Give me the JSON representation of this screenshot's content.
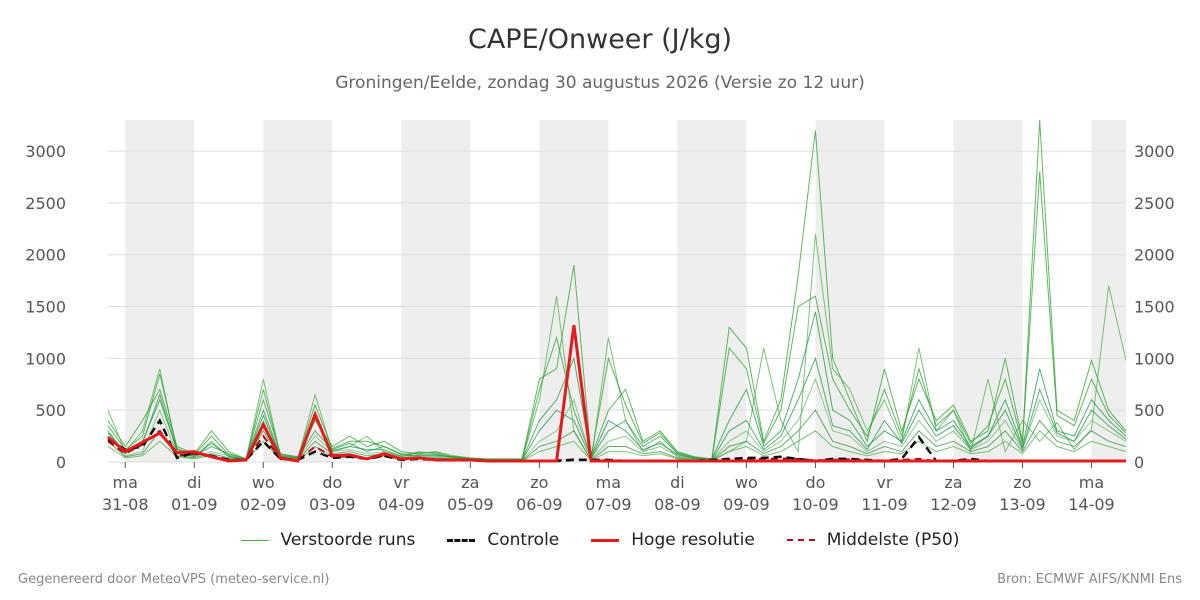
{
  "colors": {
    "accent": "#e41a1c",
    "shade": "#eeeeee",
    "grid": "#dddddd",
    "members": [
      "#4daf4a",
      "#2ca02c",
      "#1a9641",
      "#66bb6a",
      "#388e3c"
    ],
    "control": "#111111",
    "median": "#a50f15"
  },
  "footer": {
    "left": "Gegenereerd door MeteoVPS (meteo-service.nl)",
    "right": "Bron: ECMWF AIFS/KNMI Ens"
  },
  "legend": [
    {
      "label": "Verstoorde runs",
      "style": "thin-green-icon"
    },
    {
      "label": "Controle",
      "style": "black-dashed-icon"
    },
    {
      "label": "Hoge resolutie",
      "style": "red-thick-icon"
    },
    {
      "label": "Middelste (P50)",
      "style": "darkred-dashed-icon"
    }
  ],
  "chart_data": {
    "type": "line",
    "title": "CAPE/Onweer (J/kg)",
    "subtitle": "Groningen/Eelde, zondag 30 augustus 2026 (Versie zo 12 uur)",
    "xlabel": "",
    "ylabel": "",
    "xlim_days": [
      -0.25,
      14.5
    ],
    "ylim": [
      0,
      3300
    ],
    "yticks": [
      0,
      500,
      1000,
      1500,
      2000,
      2500,
      3000
    ],
    "grid": true,
    "legend_position": "bottom",
    "x_ticks": [
      {
        "day": "ma",
        "date": "31-08"
      },
      {
        "day": "di",
        "date": "01-09"
      },
      {
        "day": "wo",
        "date": "02-09"
      },
      {
        "day": "do",
        "date": "03-09"
      },
      {
        "day": "vr",
        "date": "04-09"
      },
      {
        "day": "za",
        "date": "05-09"
      },
      {
        "day": "zo",
        "date": "06-09"
      },
      {
        "day": "ma",
        "date": "07-09"
      },
      {
        "day": "di",
        "date": "08-09"
      },
      {
        "day": "wo",
        "date": "09-09"
      },
      {
        "day": "do",
        "date": "10-09"
      },
      {
        "day": "vr",
        "date": "11-09"
      },
      {
        "day": "za",
        "date": "12-09"
      },
      {
        "day": "zo",
        "date": "13-09"
      },
      {
        "day": "ma",
        "date": "14-09"
      }
    ],
    "x": [
      -0.25,
      0,
      0.25,
      0.5,
      0.75,
      1,
      1.25,
      1.5,
      1.75,
      2,
      2.25,
      2.5,
      2.75,
      3,
      3.25,
      3.5,
      3.75,
      4,
      4.25,
      4.5,
      4.75,
      5,
      5.25,
      5.5,
      5.75,
      6,
      6.25,
      6.5,
      6.75,
      7,
      7.25,
      7.5,
      7.75,
      8,
      8.25,
      8.5,
      8.75,
      9,
      9.25,
      9.5,
      9.75,
      10,
      10.25,
      10.5,
      10.75,
      11,
      11.25,
      11.5,
      11.75,
      12,
      12.25,
      12.5,
      12.75,
      13,
      13.25,
      13.5,
      13.75,
      14,
      14.25,
      14.5
    ],
    "series": [
      {
        "name": "Hoge resolutie",
        "values": [
          240,
          100,
          190,
          280,
          90,
          100,
          50,
          10,
          20,
          360,
          40,
          10,
          460,
          60,
          70,
          30,
          80,
          30,
          40,
          20,
          20,
          20,
          10,
          10,
          10,
          10,
          10,
          1320,
          10,
          10,
          10,
          10,
          10,
          10,
          10,
          10,
          10,
          10,
          10,
          10,
          10,
          10,
          10,
          10,
          10,
          10,
          10,
          10,
          10,
          10,
          10,
          10,
          10,
          10,
          10,
          10,
          10,
          10,
          10,
          10
        ]
      },
      {
        "name": "Controle",
        "values": [
          220,
          120,
          150,
          400,
          40,
          90,
          60,
          20,
          20,
          200,
          30,
          20,
          100,
          40,
          50,
          30,
          60,
          20,
          30,
          20,
          20,
          20,
          10,
          10,
          10,
          10,
          10,
          20,
          20,
          20,
          10,
          10,
          10,
          10,
          10,
          20,
          30,
          40,
          40,
          50,
          30,
          10,
          30,
          30,
          20,
          10,
          30,
          240,
          10,
          10,
          30,
          10,
          10,
          10,
          10,
          10,
          10,
          10,
          10,
          10
        ]
      },
      {
        "name": "Middelste (P50)",
        "values": [
          200,
          80,
          170,
          300,
          60,
          80,
          50,
          15,
          20,
          250,
          30,
          15,
          150,
          50,
          55,
          30,
          60,
          25,
          30,
          20,
          15,
          15,
          10,
          10,
          10,
          10,
          15,
          25,
          20,
          15,
          10,
          10,
          10,
          10,
          15,
          20,
          25,
          30,
          30,
          35,
          30,
          15,
          20,
          25,
          15,
          10,
          20,
          30,
          10,
          10,
          20,
          10,
          10,
          10,
          10,
          10,
          10,
          10,
          10,
          10
        ]
      },
      {
        "values": [
          500,
          100,
          300,
          900,
          100,
          50,
          200,
          50,
          20,
          800,
          50,
          30,
          650,
          100,
          150,
          250,
          100,
          50,
          100,
          80,
          40,
          30,
          20,
          20,
          20,
          600,
          1600,
          300,
          10,
          1200,
          400,
          100,
          200,
          50,
          30,
          20,
          100,
          200,
          1100,
          400,
          100,
          2200,
          900,
          700,
          300,
          600,
          200,
          1100,
          300,
          500,
          100,
          800,
          100,
          400,
          200,
          380,
          120,
          320,
          1700,
          980
        ]
      },
      {
        "values": [
          400,
          150,
          400,
          700,
          150,
          80,
          300,
          100,
          30,
          600,
          80,
          50,
          400,
          150,
          250,
          150,
          200,
          100,
          80,
          100,
          60,
          40,
          30,
          30,
          30,
          800,
          900,
          1900,
          50,
          500,
          700,
          200,
          300,
          100,
          50,
          30,
          1300,
          1100,
          200,
          600,
          1800,
          3200,
          1000,
          600,
          200,
          900,
          300,
          800,
          400,
          550,
          200,
          300,
          1000,
          200,
          3300,
          500,
          400,
          980,
          500,
          300
        ]
      },
      {
        "values": [
          300,
          80,
          200,
          600,
          120,
          60,
          150,
          80,
          30,
          500,
          60,
          40,
          300,
          120,
          180,
          100,
          150,
          80,
          60,
          60,
          50,
          30,
          20,
          20,
          20,
          400,
          600,
          1000,
          40,
          300,
          400,
          150,
          250,
          80,
          40,
          30,
          400,
          700,
          150,
          300,
          800,
          1450,
          500,
          400,
          150,
          300,
          200,
          600,
          300,
          400,
          150,
          250,
          600,
          150,
          900,
          300,
          250,
          600,
          400,
          250
        ]
      },
      {
        "values": [
          250,
          60,
          100,
          500,
          80,
          50,
          100,
          60,
          20,
          400,
          40,
          30,
          250,
          100,
          120,
          80,
          100,
          60,
          50,
          50,
          40,
          25,
          15,
          15,
          15,
          200,
          300,
          600,
          30,
          200,
          250,
          100,
          150,
          60,
          30,
          20,
          200,
          300,
          100,
          200,
          400,
          800,
          300,
          250,
          100,
          200,
          150,
          400,
          200,
          300,
          120,
          200,
          400,
          120,
          600,
          250,
          200,
          400,
          300,
          200
        ]
      },
      {
        "values": [
          200,
          50,
          80,
          300,
          60,
          40,
          80,
          40,
          15,
          300,
          30,
          20,
          200,
          80,
          100,
          60,
          80,
          40,
          40,
          40,
          30,
          20,
          10,
          10,
          10,
          150,
          200,
          300,
          20,
          150,
          150,
          80,
          100,
          40,
          20,
          15,
          150,
          200,
          80,
          150,
          300,
          500,
          200,
          150,
          80,
          150,
          100,
          300,
          150,
          200,
          100,
          150,
          300,
          100,
          400,
          200,
          150,
          300,
          200,
          150
        ]
      },
      {
        "values": [
          150,
          40,
          60,
          200,
          50,
          30,
          60,
          30,
          10,
          200,
          20,
          15,
          150,
          60,
          80,
          40,
          60,
          30,
          30,
          30,
          20,
          15,
          10,
          10,
          10,
          100,
          150,
          200,
          15,
          100,
          100,
          60,
          80,
          30,
          15,
          10,
          100,
          150,
          60,
          100,
          200,
          300,
          150,
          100,
          60,
          100,
          80,
          200,
          100,
          150,
          80,
          100,
          200,
          80,
          300,
          150,
          100,
          200,
          150,
          100
        ]
      },
      {
        "values": [
          350,
          120,
          250,
          850,
          130,
          70,
          250,
          70,
          25,
          700,
          70,
          45,
          550,
          130,
          200,
          200,
          150,
          70,
          90,
          90,
          50,
          35,
          25,
          25,
          25,
          700,
          1200,
          500,
          45,
          1000,
          550,
          180,
          280,
          90,
          45,
          25,
          1100,
          900,
          180,
          500,
          1500,
          1600,
          800,
          500,
          250,
          700,
          250,
          900,
          350,
          500,
          180,
          350,
          800,
          180,
          2800,
          450,
          350,
          800,
          450,
          280
        ]
      },
      {
        "values": [
          280,
          90,
          180,
          650,
          100,
          55,
          180,
          55,
          18,
          450,
          50,
          35,
          420,
          110,
          150,
          120,
          120,
          55,
          70,
          70,
          45,
          28,
          18,
          18,
          18,
          300,
          500,
          400,
          35,
          400,
          300,
          120,
          180,
          70,
          35,
          18,
          300,
          400,
          120,
          250,
          600,
          1000,
          350,
          300,
          120,
          400,
          180,
          500,
          250,
          350,
          130,
          250,
          500,
          130,
          700,
          280,
          200,
          500,
          350,
          220
        ]
      }
    ]
  }
}
